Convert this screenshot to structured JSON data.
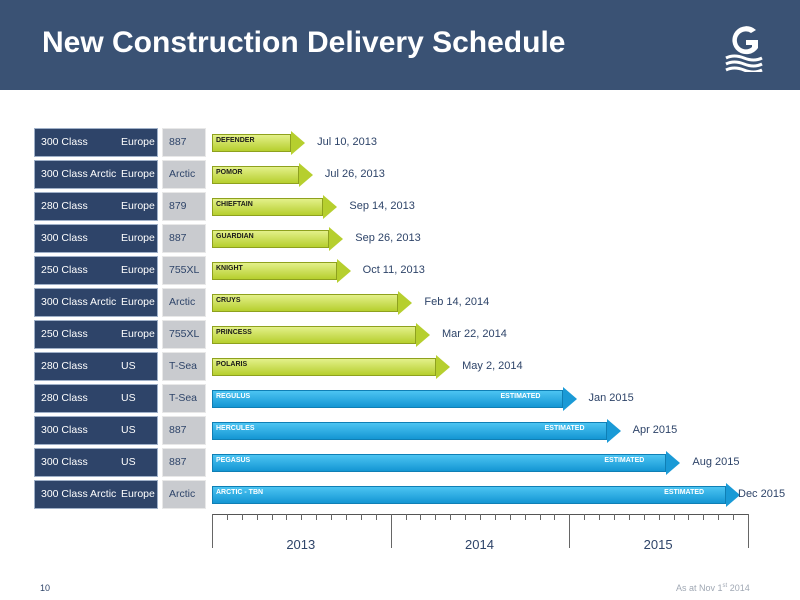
{
  "header": {
    "title": "New Construction Delivery Schedule"
  },
  "footer": {
    "page_number": "10",
    "as_at_prefix": "As at Nov 1",
    "as_at_sup": "st",
    "as_at_suffix": " 2014"
  },
  "colors": {
    "header_bg": "#3a5274",
    "row_label_bg": "#2e4469",
    "model_bg": "#c9cbcf",
    "delivered_arrow": "#b6cf2e",
    "estimated_arrow": "#1a9ad6"
  },
  "chart_data": {
    "type": "bar",
    "x_axis": {
      "years": [
        "2013",
        "2014",
        "2015"
      ],
      "start": "2013-01-01",
      "end": "2015-12-31"
    },
    "rows": [
      {
        "class": "300 Class",
        "region": "Europe",
        "model": "887",
        "vessel": "DEFENDER",
        "date_label": "Jul 10, 2013",
        "date": "2013-07-10",
        "estimated": false
      },
      {
        "class": "300 Class Arctic",
        "region": "Europe",
        "model": "Arctic",
        "vessel": "POMOR",
        "date_label": "Jul 26, 2013",
        "date": "2013-07-26",
        "estimated": false
      },
      {
        "class": "280 Class",
        "region": "Europe",
        "model": "879",
        "vessel": "CHIEFTAIN",
        "date_label": "Sep 14, 2013",
        "date": "2013-09-14",
        "estimated": false
      },
      {
        "class": "300 Class",
        "region": "Europe",
        "model": "887",
        "vessel": "GUARDIAN",
        "date_label": "Sep 26, 2013",
        "date": "2013-09-26",
        "estimated": false
      },
      {
        "class": "250 Class",
        "region": "Europe",
        "model": "755XL",
        "vessel": "KNIGHT",
        "date_label": "Oct 11, 2013",
        "date": "2013-10-11",
        "estimated": false
      },
      {
        "class": "300 Class Arctic",
        "region": "Europe",
        "model": "Arctic",
        "vessel": "CRUYS",
        "date_label": "Feb 14, 2014",
        "date": "2014-02-14",
        "estimated": false
      },
      {
        "class": "250 Class",
        "region": "Europe",
        "model": "755XL",
        "vessel": "PRINCESS",
        "date_label": "Mar 22, 2014",
        "date": "2014-03-22",
        "estimated": false
      },
      {
        "class": "280 Class",
        "region": "US",
        "model": "T-Sea",
        "vessel": "POLARIS",
        "date_label": "May 2, 2014",
        "date": "2014-05-02",
        "estimated": false
      },
      {
        "class": "280 Class",
        "region": "US",
        "model": "T-Sea",
        "vessel": "REGULUS",
        "date_label": "Jan 2015",
        "date": "2015-01-15",
        "estimated": true,
        "estimated_label": "ESTIMATED"
      },
      {
        "class": "300 Class",
        "region": "US",
        "model": "887",
        "vessel": "HERCULES",
        "date_label": "Apr 2015",
        "date": "2015-04-15",
        "estimated": true,
        "estimated_label": "ESTIMATED"
      },
      {
        "class": "300 Class",
        "region": "US",
        "model": "887",
        "vessel": "PEGASUS",
        "date_label": "Aug 2015",
        "date": "2015-08-15",
        "estimated": true,
        "estimated_label": "ESTIMATED"
      },
      {
        "class": "300 Class Arctic",
        "region": "Europe",
        "model": "Arctic",
        "vessel": "ARCTIC - TBN",
        "date_label": "Dec 2015",
        "date": "2015-12-15",
        "estimated": true,
        "estimated_label": "ESTIMATED"
      }
    ]
  }
}
